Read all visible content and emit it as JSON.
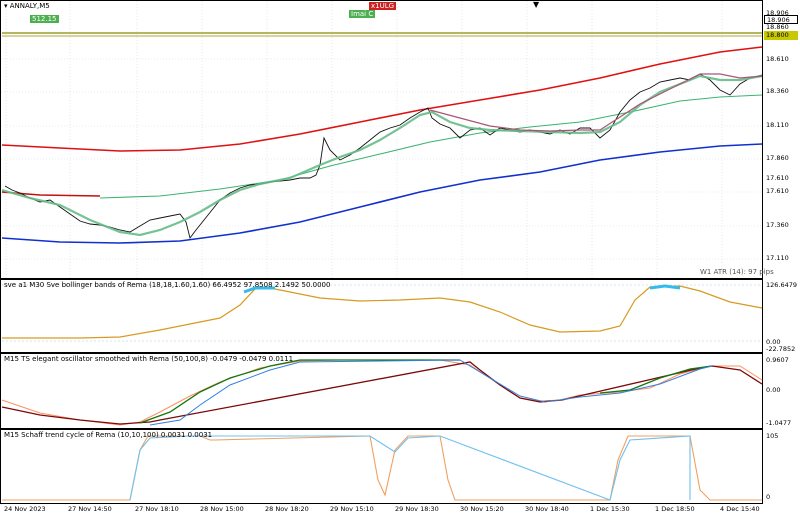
{
  "header": {
    "symbol_timeframe": "ANNALY,M5",
    "badge_left": "512.15",
    "badge_mid": "Imai C",
    "badge_red": "x1ULG",
    "marker": "▼"
  },
  "price_scale": [
    "18.906",
    "18.610",
    "18.360",
    "18.110",
    "17.860",
    "17.610",
    "17.360",
    "17.110"
  ],
  "price_boxes": {
    "current": "18.906",
    "secondary": "18.860",
    "level": "18.800",
    "mid": "17.610"
  },
  "main_pane": {
    "atr_label": "W1 ATR (14): 97 pips"
  },
  "indicators": {
    "bollinger": {
      "title": "sve a1 M30 Sve bollinger bands of Rema (18,18,1.60,1.60) 66.4952 97.8508 2.1492 50.0000",
      "scale": [
        "126.6479",
        "0.00",
        "-22.7852"
      ]
    },
    "elegant": {
      "title": "M15 TS elegant oscillator smoothed with Rema (50,100,8) -0.0479 -0.0479 0.0111",
      "scale": [
        "0.9607",
        "0.00",
        "-1.0477"
      ]
    },
    "schaff": {
      "title": "M15 Schaff trend cycle of Rema (10,10,100) 0.0031 0.0031",
      "scale": [
        "105",
        "0"
      ]
    }
  },
  "time_axis": [
    "24 Nov 2023",
    "27 Nov 14:50",
    "27 Nov 18:10",
    "28 Nov 15:00",
    "28 Nov 18:20",
    "29 Nov 15:10",
    "29 Nov 18:30",
    "30 Nov 15:20",
    "30 Nov 18:40",
    "1 Dec 15:30",
    "1 Dec 18:50",
    "4 Dec 15:40"
  ],
  "colors": {
    "upper_band": "#e01010",
    "lower_band": "#1030d0",
    "mid_line": "#3cb371",
    "level_line": "#8b8b00",
    "bollinger_line": "#d89a20",
    "highlight": "#33bbee"
  }
}
